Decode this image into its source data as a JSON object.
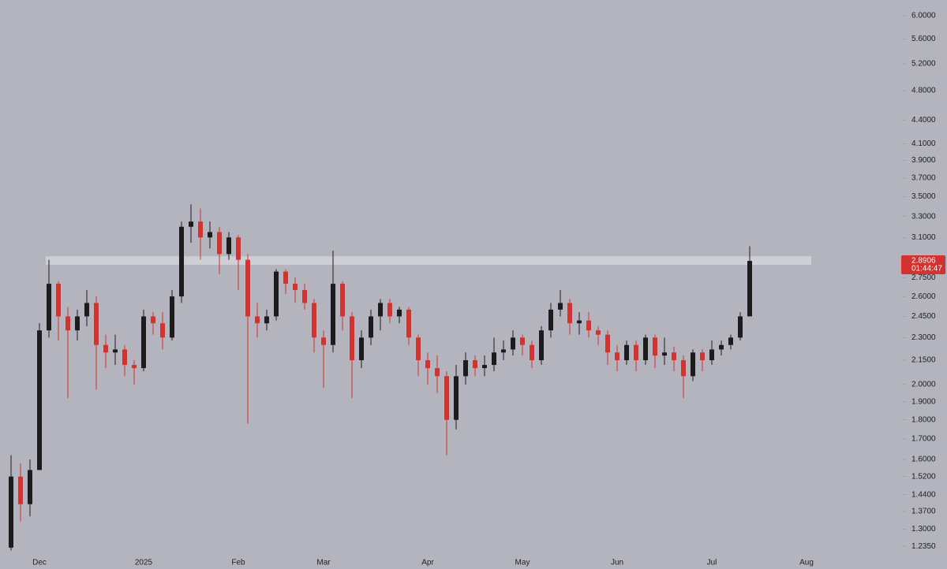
{
  "chart_data": {
    "type": "candlestick",
    "categories": [
      null,
      null,
      null,
      "Dec",
      null,
      null,
      null,
      null,
      null,
      null,
      null,
      null,
      null,
      null,
      "2025",
      null,
      null,
      null,
      null,
      null,
      null,
      null,
      null,
      null,
      "Feb",
      null,
      null,
      null,
      null,
      null,
      null,
      null,
      null,
      "Mar",
      null,
      null,
      null,
      null,
      null,
      null,
      null,
      null,
      null,
      null,
      "Apr",
      null,
      null,
      null,
      null,
      null,
      null,
      null,
      null,
      null,
      "May",
      null,
      null,
      null,
      null,
      null,
      null,
      null,
      null,
      null,
      "Jun",
      null,
      null,
      null,
      null,
      null,
      null,
      null,
      null,
      null,
      "Jul",
      null,
      null,
      null,
      null,
      null,
      null,
      null,
      null,
      null,
      "Aug",
      null,
      null,
      null,
      null,
      null,
      null,
      null,
      null,
      null
    ],
    "open": [
      1.23,
      1.52,
      1.4,
      1.55,
      2.35,
      2.7,
      2.45,
      2.35,
      2.45,
      2.55,
      2.25,
      2.2,
      2.22,
      2.12,
      2.1,
      2.45,
      2.4,
      2.3,
      2.6,
      3.2,
      3.25,
      3.1,
      3.15,
      2.95,
      3.1,
      2.9,
      2.45,
      2.4,
      2.45,
      2.8,
      2.7,
      2.65,
      2.55,
      2.3,
      2.25,
      2.7,
      2.45,
      2.15,
      2.3,
      2.45,
      2.55,
      2.45,
      2.5,
      2.3,
      2.15,
      2.1,
      2.05,
      1.8,
      2.05,
      2.15,
      2.1,
      2.12,
      2.2,
      2.22,
      2.3,
      2.25,
      2.15,
      2.35,
      2.5,
      2.55,
      2.4,
      2.42,
      2.35,
      2.32,
      2.2,
      2.15,
      2.25,
      2.15,
      2.3,
      2.18,
      2.2,
      2.15,
      2.05,
      2.2,
      2.15,
      2.22,
      2.25,
      2.3,
      2.45,
      null,
      null,
      null,
      null,
      null,
      null,
      null,
      null,
      null,
      null,
      null,
      null,
      null,
      null,
      null
    ],
    "high": [
      1.62,
      1.58,
      1.6,
      2.4,
      2.9,
      2.72,
      2.52,
      2.5,
      2.65,
      2.6,
      2.32,
      2.32,
      2.25,
      2.15,
      2.5,
      2.48,
      2.48,
      2.65,
      3.25,
      3.42,
      3.38,
      3.25,
      3.2,
      3.15,
      3.12,
      2.95,
      2.55,
      2.5,
      2.82,
      2.82,
      2.75,
      2.7,
      2.58,
      2.35,
      2.98,
      2.72,
      2.48,
      2.35,
      2.5,
      2.58,
      2.58,
      2.52,
      2.52,
      2.32,
      2.2,
      2.18,
      2.08,
      2.12,
      2.2,
      2.18,
      2.18,
      2.3,
      2.28,
      2.35,
      2.32,
      2.28,
      2.38,
      2.55,
      2.65,
      2.58,
      2.48,
      2.48,
      2.38,
      2.35,
      2.25,
      2.28,
      2.28,
      2.32,
      2.32,
      2.3,
      2.24,
      2.18,
      2.22,
      2.22,
      2.28,
      2.28,
      2.32,
      2.48,
      3.02,
      null,
      null,
      null,
      null,
      null,
      null,
      null,
      null,
      null,
      null,
      null,
      null,
      null,
      null,
      null
    ],
    "low": [
      1.22,
      1.33,
      1.35,
      1.55,
      2.3,
      2.28,
      1.92,
      2.28,
      2.38,
      1.97,
      2.1,
      2.12,
      2.05,
      2.0,
      2.08,
      2.32,
      2.22,
      2.28,
      2.55,
      3.05,
      2.9,
      3.0,
      2.78,
      2.9,
      2.65,
      1.78,
      2.3,
      2.35,
      2.42,
      2.62,
      2.55,
      2.5,
      2.2,
      1.98,
      2.2,
      2.35,
      1.92,
      2.1,
      2.25,
      2.35,
      2.4,
      2.4,
      2.25,
      2.05,
      2.0,
      1.95,
      1.62,
      1.75,
      2.0,
      2.05,
      2.05,
      2.08,
      2.15,
      2.18,
      2.18,
      2.1,
      2.12,
      2.3,
      2.45,
      2.32,
      2.32,
      2.3,
      2.25,
      2.12,
      2.08,
      2.12,
      2.08,
      2.12,
      2.1,
      2.12,
      2.08,
      1.92,
      2.02,
      2.08,
      2.12,
      2.18,
      2.22,
      2.28,
      2.45,
      null,
      null,
      null,
      null,
      null,
      null,
      null,
      null,
      null,
      null,
      null,
      null,
      null,
      null,
      null
    ],
    "close": [
      1.52,
      1.4,
      1.55,
      2.35,
      2.7,
      2.45,
      2.35,
      2.45,
      2.55,
      2.25,
      2.2,
      2.22,
      2.12,
      2.1,
      2.45,
      2.4,
      2.3,
      2.6,
      3.2,
      3.25,
      3.1,
      3.15,
      2.95,
      3.1,
      2.9,
      2.45,
      2.4,
      2.45,
      2.8,
      2.7,
      2.65,
      2.55,
      2.3,
      2.25,
      2.7,
      2.45,
      2.15,
      2.3,
      2.45,
      2.55,
      2.45,
      2.5,
      2.3,
      2.15,
      2.1,
      2.05,
      1.8,
      2.05,
      2.15,
      2.1,
      2.12,
      2.2,
      2.22,
      2.3,
      2.25,
      2.15,
      2.35,
      2.5,
      2.55,
      2.4,
      2.42,
      2.35,
      2.32,
      2.2,
      2.15,
      2.25,
      2.15,
      2.3,
      2.18,
      2.2,
      2.15,
      2.05,
      2.2,
      2.15,
      2.22,
      2.25,
      2.3,
      2.45,
      2.8906,
      null,
      null,
      null,
      null,
      null,
      null,
      null,
      null,
      null,
      null,
      null,
      null,
      null,
      null,
      null
    ],
    "up_color": "#1c1c1f",
    "down_color": "#d3322f",
    "log_scale": true,
    "ylim": [
      1.154,
      6.29
    ],
    "yticks": [
      {
        "value": 6,
        "label": "6.0000"
      },
      {
        "value": 5.6,
        "label": "5.6000"
      },
      {
        "value": 5.2,
        "label": "5.2000"
      },
      {
        "value": 4.8,
        "label": "4.8000"
      },
      {
        "value": 4.4,
        "label": "4.4000"
      },
      {
        "value": 4.1,
        "label": "4.1000"
      },
      {
        "value": 3.9,
        "label": "3.9000"
      },
      {
        "value": 3.7,
        "label": "3.7000"
      },
      {
        "value": 3.5,
        "label": "3.5000"
      },
      {
        "value": 3.3,
        "label": "3.3000"
      },
      {
        "value": 3.1,
        "label": "3.1000"
      },
      {
        "value": 2.75,
        "label": "2.7500"
      },
      {
        "value": 2.6,
        "label": "2.6000"
      },
      {
        "value": 2.45,
        "label": "2.4500"
      },
      {
        "value": 2.3,
        "label": "2.3000"
      },
      {
        "value": 2.15,
        "label": "2.1500"
      },
      {
        "value": 2,
        "label": "2.0000"
      },
      {
        "value": 1.9,
        "label": "1.9000"
      },
      {
        "value": 1.8,
        "label": "1.8000"
      },
      {
        "value": 1.7,
        "label": "1.7000"
      },
      {
        "value": 1.6,
        "label": "1.6000"
      },
      {
        "value": 1.52,
        "label": "1.5200"
      },
      {
        "value": 1.44,
        "label": "1.4400"
      },
      {
        "value": 1.37,
        "label": "1.3700"
      },
      {
        "value": 1.3,
        "label": "1.3000"
      },
      {
        "value": 1.235,
        "label": "1.2350"
      }
    ],
    "zone": [
      2.857,
      2.931
    ],
    "last_price": 2.8906,
    "countdown": "01:44:47"
  }
}
